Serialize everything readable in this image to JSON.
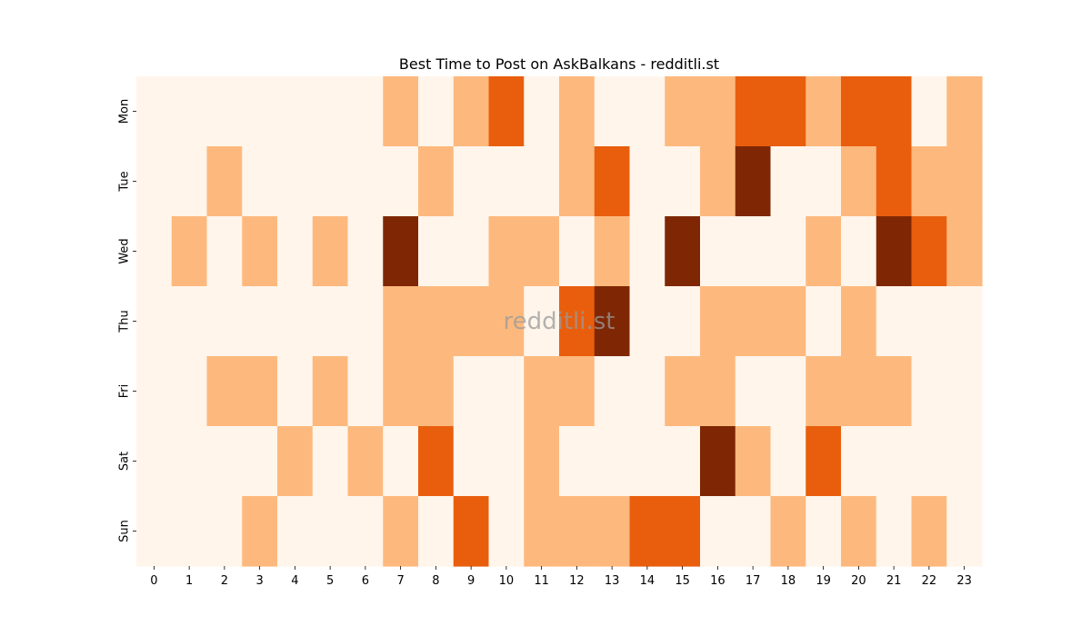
{
  "chart_data": {
    "type": "heatmap",
    "title": "Best Time to Post on AskBalkans - redditli.st",
    "watermark": "redditli.st",
    "xlabel": "",
    "ylabel": "",
    "x": [
      0,
      1,
      2,
      3,
      4,
      5,
      6,
      7,
      8,
      9,
      10,
      11,
      12,
      13,
      14,
      15,
      16,
      17,
      18,
      19,
      20,
      21,
      22,
      23
    ],
    "y": [
      "Mon",
      "Tue",
      "Wed",
      "Thu",
      "Fri",
      "Sat",
      "Sun"
    ],
    "colorscale": [
      "#fff5eb",
      "#fdb97d",
      "#e95e0d",
      "#7f2704"
    ],
    "grid": false,
    "legend": "none",
    "values": [
      [
        0,
        0,
        0,
        0,
        0,
        0,
        0,
        1,
        0,
        1,
        2,
        0,
        1,
        0,
        0,
        1,
        1,
        2,
        2,
        1,
        2,
        2,
        0,
        1
      ],
      [
        0,
        0,
        1,
        0,
        0,
        0,
        0,
        0,
        1,
        0,
        0,
        0,
        1,
        2,
        0,
        0,
        1,
        3,
        0,
        0,
        1,
        2,
        1,
        1
      ],
      [
        0,
        1,
        0,
        1,
        0,
        1,
        0,
        3,
        0,
        0,
        1,
        1,
        0,
        1,
        0,
        3,
        0,
        0,
        0,
        1,
        0,
        3,
        2,
        1
      ],
      [
        0,
        0,
        0,
        0,
        0,
        0,
        0,
        1,
        1,
        1,
        1,
        0,
        2,
        3,
        0,
        0,
        1,
        1,
        1,
        0,
        1,
        0,
        0,
        0
      ],
      [
        0,
        0,
        1,
        1,
        0,
        1,
        0,
        1,
        1,
        0,
        0,
        1,
        1,
        0,
        0,
        1,
        1,
        0,
        0,
        1,
        1,
        1,
        0,
        0
      ],
      [
        0,
        0,
        0,
        0,
        1,
        0,
        1,
        0,
        2,
        0,
        0,
        1,
        0,
        0,
        0,
        0,
        3,
        1,
        0,
        2,
        0,
        0,
        0,
        0
      ],
      [
        0,
        0,
        0,
        1,
        0,
        0,
        0,
        1,
        0,
        2,
        0,
        1,
        1,
        1,
        2,
        2,
        0,
        0,
        1,
        0,
        1,
        0,
        1,
        0
      ]
    ]
  }
}
